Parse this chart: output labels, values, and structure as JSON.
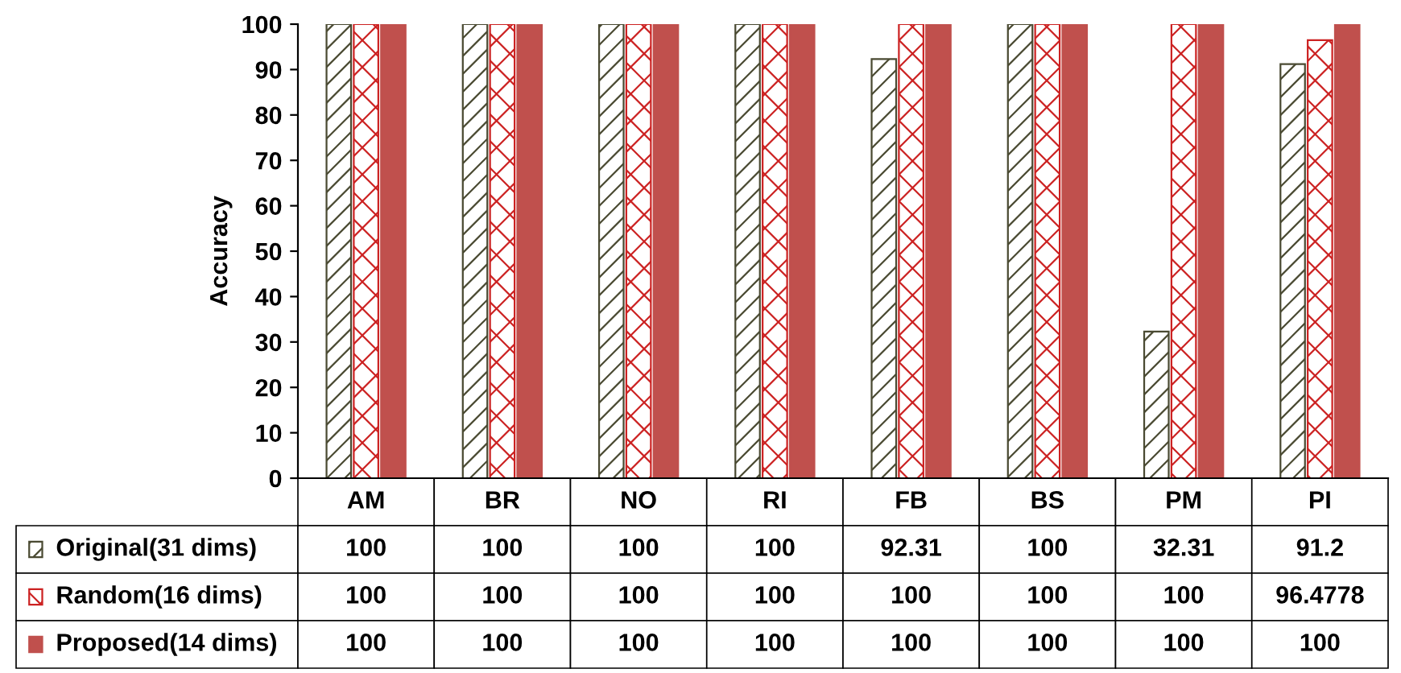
{
  "chart_data": {
    "type": "bar",
    "ylabel": "Accuracy",
    "categories": [
      "AM",
      "BR",
      "NO",
      "RI",
      "FB",
      "BS",
      "PM",
      "PI"
    ],
    "series": [
      {
        "name": "Original(31 dims)",
        "color": "#4a4a32",
        "values": [
          100,
          100,
          100,
          100,
          92.31,
          100,
          32.31,
          91.2
        ]
      },
      {
        "name": "Random(16 dims)",
        "color": "#cc2222",
        "values": [
          100,
          100,
          100,
          100,
          100,
          100,
          100,
          96.4778
        ]
      },
      {
        "name": "Proposed(14 dims)",
        "color": "#c0504d",
        "values": [
          100,
          100,
          100,
          100,
          100,
          100,
          100,
          100
        ]
      }
    ],
    "ylim": [
      0,
      100
    ],
    "yticks": [
      0,
      10,
      20,
      30,
      40,
      50,
      60,
      70,
      80,
      90,
      100
    ],
    "grid": false,
    "legend": "bottom",
    "data_labels": true
  }
}
